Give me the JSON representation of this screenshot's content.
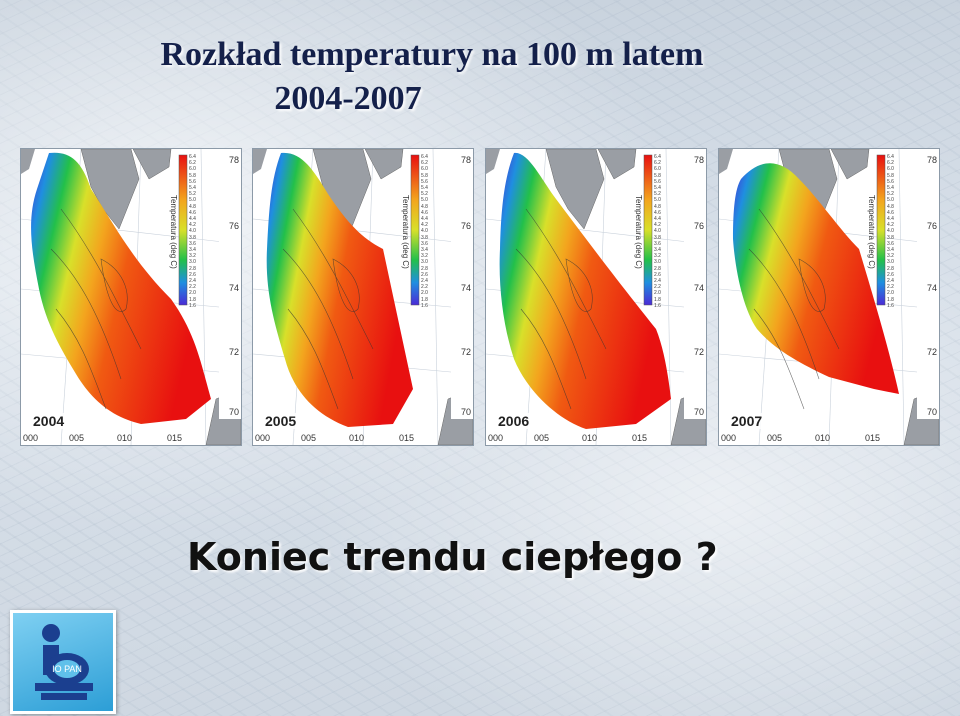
{
  "title": {
    "line1": "Rozkład temperatury na 100 m latem",
    "line2": "2004-2007"
  },
  "subtitle": "Koniec trendu ciepłego ?",
  "colorbar_label": "Temperatura (deg C)",
  "colorbar_ticks": [
    "6.4",
    "6.2",
    "6.0",
    "5.8",
    "5.6",
    "5.4",
    "5.2",
    "5.0",
    "4.8",
    "4.6",
    "4.4",
    "4.2",
    "4.0",
    "3.8",
    "3.6",
    "3.4",
    "3.2",
    "3.0",
    "2.8",
    "2.6",
    "2.4",
    "2.2",
    "2.0",
    "1.8",
    "1.6"
  ],
  "lat_ticks": [
    "78",
    "76",
    "74",
    "72",
    "70"
  ],
  "lon_ticks": [
    "000",
    "005",
    "010",
    "015"
  ],
  "panels": [
    {
      "year": "2004"
    },
    {
      "year": "2005"
    },
    {
      "year": "2006"
    },
    {
      "year": "2007"
    }
  ],
  "logo": {
    "text": "IO PAN",
    "icon": "institute-logo-icon"
  }
}
